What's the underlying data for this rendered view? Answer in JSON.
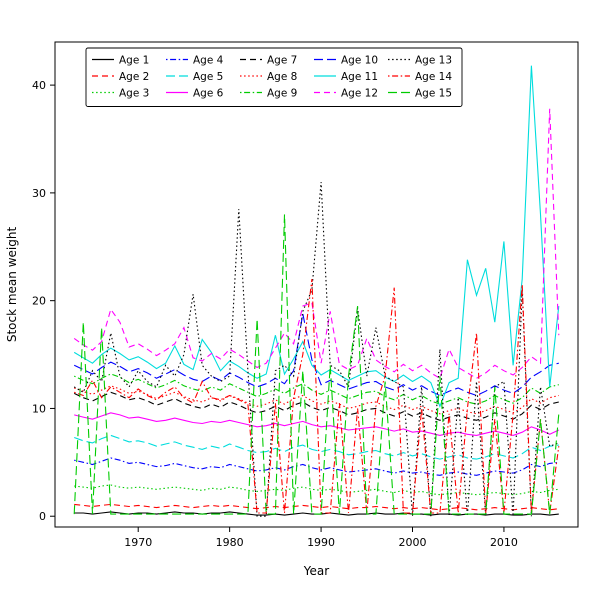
{
  "figure": {
    "xlabel": "Year",
    "ylabel": "Stock mean weight"
  },
  "chart_data": {
    "type": "line",
    "title": "",
    "xlabel": "Year",
    "ylabel": "Stock mean weight",
    "xlim": [
      1960.9,
      2018.1
    ],
    "ylim": [
      -1,
      44
    ],
    "x_ticks": [
      1970,
      1980,
      1990,
      2000,
      2010
    ],
    "y_ticks": [
      0,
      10,
      20,
      30,
      40
    ],
    "grid": false,
    "legend_position": "upper-left",
    "legend_ncol": 5,
    "legend_order": "column-major",
    "x": [
      1963,
      1964,
      1965,
      1966,
      1967,
      1968,
      1969,
      1970,
      1971,
      1972,
      1973,
      1974,
      1975,
      1976,
      1977,
      1978,
      1979,
      1980,
      1981,
      1982,
      1983,
      1984,
      1985,
      1986,
      1987,
      1988,
      1989,
      1990,
      1991,
      1992,
      1993,
      1994,
      1995,
      1996,
      1997,
      1998,
      1999,
      2000,
      2001,
      2002,
      2003,
      2004,
      2005,
      2006,
      2007,
      2008,
      2009,
      2010,
      2011,
      2012,
      2013,
      2014,
      2015,
      2016
    ],
    "series": [
      {
        "name": "Age 1",
        "color": "#000000",
        "linestyle": "solid",
        "values": [
          0.3,
          0.3,
          0.2,
          0.3,
          0.4,
          0.3,
          0.2,
          0.3,
          0.3,
          0.2,
          0.3,
          0.4,
          0.3,
          0.3,
          0.2,
          0.3,
          0.3,
          0.4,
          0.3,
          0.2,
          0.1,
          0.1,
          0.2,
          0.1,
          0.2,
          0.3,
          0.2,
          0.2,
          0.3,
          0.2,
          0.1,
          0.2,
          0.2,
          0.3,
          0.2,
          0.2,
          0.3,
          0.2,
          0.2,
          0.1,
          0.2,
          0.2,
          0.1,
          0.2,
          0.2,
          0.1,
          0.2,
          0.2,
          0.1,
          0.1,
          0.2,
          0.2,
          0.1,
          0.2
        ]
      },
      {
        "name": "Age 2",
        "color": "#ff0000",
        "linestyle": "dashed",
        "values": [
          1.1,
          1.0,
          0.9,
          1.0,
          1.1,
          1.0,
          0.9,
          1.0,
          0.9,
          0.8,
          0.9,
          1.0,
          0.9,
          0.8,
          0.9,
          1.0,
          0.9,
          1.0,
          0.9,
          0.8,
          0.7,
          0.8,
          0.9,
          0.8,
          0.9,
          1.0,
          0.9,
          0.8,
          0.9,
          0.8,
          0.7,
          0.8,
          0.8,
          0.9,
          0.8,
          0.7,
          0.8,
          0.7,
          0.8,
          0.7,
          0.6,
          0.7,
          0.8,
          0.7,
          0.6,
          0.7,
          0.8,
          0.7,
          0.6,
          0.7,
          0.8,
          0.7,
          0.6,
          0.7
        ]
      },
      {
        "name": "Age 3",
        "color": "#00cc00",
        "linestyle": "dotted",
        "values": [
          2.8,
          2.7,
          2.6,
          2.8,
          2.9,
          2.7,
          2.6,
          2.7,
          2.6,
          2.5,
          2.6,
          2.7,
          2.6,
          2.5,
          2.4,
          2.6,
          2.5,
          2.7,
          2.6,
          2.4,
          2.3,
          2.4,
          2.5,
          2.4,
          2.6,
          2.7,
          2.5,
          2.4,
          2.5,
          2.4,
          2.2,
          2.3,
          2.4,
          2.5,
          2.3,
          2.2,
          2.4,
          2.2,
          2.3,
          2.1,
          2.0,
          2.1,
          2.2,
          2.1,
          2.0,
          2.1,
          2.2,
          2.1,
          2.0,
          2.1,
          2.3,
          2.2,
          2.4,
          2.5
        ]
      },
      {
        "name": "Age 4",
        "color": "#0000ff",
        "linestyle": "dashdot",
        "values": [
          5.2,
          5.0,
          4.8,
          5.1,
          5.4,
          5.2,
          4.9,
          5.0,
          4.8,
          4.6,
          4.7,
          4.9,
          4.7,
          4.5,
          4.4,
          4.6,
          4.5,
          4.8,
          4.6,
          4.4,
          4.2,
          4.3,
          4.5,
          4.3,
          4.6,
          4.8,
          4.5,
          4.3,
          4.5,
          4.3,
          4.1,
          4.2,
          4.3,
          4.4,
          4.2,
          4.0,
          4.2,
          4.0,
          4.1,
          3.9,
          3.8,
          4.0,
          4.1,
          3.9,
          3.8,
          4.0,
          4.2,
          4.1,
          4.0,
          4.3,
          4.8,
          4.6,
          4.9,
          5.0
        ]
      },
      {
        "name": "Age 5",
        "color": "#00dddd",
        "linestyle": "longdash",
        "values": [
          7.3,
          7.0,
          6.8,
          7.2,
          7.5,
          7.2,
          6.9,
          7.0,
          6.8,
          6.5,
          6.7,
          6.9,
          6.6,
          6.4,
          6.2,
          6.5,
          6.3,
          6.7,
          6.4,
          6.1,
          5.9,
          6.0,
          6.3,
          6.0,
          6.4,
          6.6,
          6.2,
          6.0,
          6.2,
          6.0,
          5.7,
          5.8,
          6.0,
          6.1,
          5.8,
          5.6,
          5.9,
          5.6,
          5.8,
          5.5,
          5.3,
          5.5,
          5.7,
          5.4,
          5.3,
          5.5,
          5.8,
          5.6,
          5.4,
          5.8,
          6.4,
          6.1,
          6.5,
          6.6
        ]
      },
      {
        "name": "Age 6",
        "color": "#ff00ff",
        "linestyle": "solid",
        "values": [
          9.4,
          9.2,
          9.0,
          9.3,
          9.6,
          9.4,
          9.1,
          9.2,
          9.0,
          8.8,
          8.9,
          9.1,
          8.9,
          8.7,
          8.6,
          8.8,
          8.7,
          8.9,
          8.7,
          8.5,
          8.3,
          8.4,
          8.6,
          8.4,
          8.6,
          8.8,
          8.5,
          8.3,
          8.4,
          8.2,
          8.0,
          8.1,
          8.2,
          8.3,
          8.1,
          7.9,
          8.1,
          7.8,
          7.9,
          7.7,
          7.5,
          7.7,
          7.8,
          7.6,
          7.5,
          7.7,
          7.9,
          7.7,
          7.5,
          7.8,
          8.3,
          8.0,
          7.6,
          8.0
        ]
      },
      {
        "name": "Age 7",
        "color": "#000000",
        "linestyle": "dashed",
        "values": [
          11.4,
          11.0,
          10.7,
          11.1,
          11.5,
          11.2,
          10.8,
          11.0,
          10.7,
          10.3,
          10.6,
          10.9,
          10.5,
          10.2,
          10.0,
          10.4,
          10.1,
          10.6,
          10.3,
          9.9,
          9.6,
          9.8,
          10.2,
          9.8,
          10.3,
          10.6,
          10.1,
          9.8,
          10.1,
          9.8,
          9.4,
          9.6,
          9.9,
          10.0,
          9.6,
          9.3,
          9.7,
          9.3,
          9.6,
          9.2,
          8.9,
          9.2,
          9.4,
          9.1,
          8.9,
          9.2,
          9.6,
          9.3,
          9.0,
          9.5,
          10.3,
          9.9,
          10.4,
          10.6
        ]
      },
      {
        "name": "Age 8",
        "color": "#ff0000",
        "linestyle": "dotted",
        "values": [
          11.9,
          11.6,
          11.3,
          11.7,
          12.1,
          11.8,
          11.4,
          11.6,
          11.3,
          10.9,
          11.2,
          11.5,
          11.1,
          10.8,
          10.6,
          11.0,
          10.7,
          11.2,
          10.9,
          10.5,
          10.2,
          10.4,
          10.8,
          10.4,
          10.9,
          11.2,
          10.7,
          10.4,
          10.7,
          10.4,
          10.0,
          10.2,
          10.5,
          10.6,
          10.2,
          9.9,
          10.3,
          9.9,
          10.2,
          9.8,
          9.5,
          9.8,
          10.0,
          9.7,
          9.5,
          9.8,
          10.2,
          9.9,
          9.6,
          10.1,
          10.9,
          10.5,
          11.0,
          11.2
        ]
      },
      {
        "name": "Age 9",
        "color": "#00cc00",
        "linestyle": "dashdot",
        "values": [
          13.0,
          12.6,
          12.3,
          12.8,
          13.2,
          12.9,
          12.4,
          12.7,
          12.3,
          11.9,
          12.2,
          12.6,
          12.1,
          11.8,
          11.6,
          12.0,
          11.7,
          12.3,
          11.9,
          11.5,
          11.1,
          11.4,
          11.8,
          11.4,
          11.9,
          12.3,
          11.7,
          11.3,
          11.7,
          11.3,
          10.9,
          11.2,
          11.5,
          11.6,
          11.1,
          10.8,
          11.3,
          10.8,
          11.2,
          10.7,
          10.4,
          10.7,
          11.0,
          10.6,
          10.4,
          10.7,
          11.2,
          10.8,
          10.5,
          11.0,
          11.9,
          11.4,
          12.0,
          12.2
        ]
      },
      {
        "name": "Age 10",
        "color": "#0000ff",
        "linestyle": "longdash",
        "values": [
          14.0,
          13.6,
          13.2,
          13.8,
          14.3,
          13.9,
          13.4,
          13.7,
          13.3,
          12.8,
          13.2,
          13.6,
          13.1,
          12.7,
          12.5,
          13.0,
          12.6,
          13.3,
          12.9,
          12.4,
          12.0,
          12.3,
          12.8,
          12.3,
          13.5,
          18.8,
          14.5,
          12.2,
          12.6,
          12.2,
          11.8,
          12.1,
          12.4,
          12.5,
          12.0,
          11.7,
          12.2,
          11.7,
          12.1,
          11.6,
          11.2,
          11.6,
          11.9,
          11.5,
          11.2,
          11.6,
          12.1,
          11.7,
          11.4,
          12.0,
          12.9,
          13.4,
          14.0,
          14.2
        ]
      },
      {
        "name": "Age 11",
        "color": "#00dddd",
        "linestyle": "solid",
        "values": [
          15.2,
          14.7,
          14.2,
          15.0,
          15.6,
          15.1,
          14.5,
          14.8,
          14.3,
          13.7,
          14.2,
          15.8,
          14.1,
          13.6,
          16.4,
          15.2,
          13.5,
          14.4,
          13.9,
          13.3,
          12.8,
          13.2,
          16.8,
          13.2,
          14.6,
          16.2,
          14.0,
          13.1,
          13.6,
          13.1,
          12.6,
          13.0,
          13.4,
          13.5,
          12.9,
          12.5,
          13.1,
          12.5,
          13.0,
          12.4,
          10.2,
          12.4,
          12.8,
          23.8,
          20.5,
          23.0,
          18.0,
          25.5,
          14.0,
          22.0,
          41.8,
          28.0,
          12.0,
          19.5
        ]
      },
      {
        "name": "Age 12",
        "color": "#ff00ff",
        "linestyle": "dashed",
        "values": [
          16.5,
          15.9,
          15.4,
          16.2,
          19.2,
          18.0,
          15.7,
          16.0,
          15.5,
          14.9,
          15.4,
          16.0,
          17.5,
          14.7,
          14.4,
          15.1,
          14.6,
          15.5,
          15.0,
          14.4,
          13.8,
          14.2,
          15.6,
          17.0,
          16.0,
          19.5,
          19.8,
          14.2,
          19.0,
          14.1,
          13.6,
          14.0,
          16.5,
          14.5,
          13.9,
          13.4,
          14.1,
          13.5,
          14.0,
          13.3,
          12.8,
          15.5,
          13.8,
          13.3,
          12.8,
          13.3,
          14.0,
          13.5,
          13.1,
          13.8,
          14.8,
          14.2,
          37.8,
          16.8
        ]
      },
      {
        "name": "Age 13",
        "color": "#000000",
        "linestyle": "dotted",
        "values": [
          12.0,
          11.5,
          13.5,
          12.5,
          17.0,
          13.0,
          12.0,
          13.5,
          12.5,
          12.0,
          14.0,
          13.0,
          15.0,
          20.6,
          14.0,
          13.0,
          12.5,
          13.0,
          28.5,
          13.5,
          0.0,
          0.0,
          13.5,
          14.0,
          13.0,
          19.0,
          21.0,
          31.0,
          14.0,
          13.5,
          12.0,
          19.3,
          13.0,
          17.5,
          13.0,
          12.5,
          12.0,
          0.0,
          12.0,
          0.0,
          15.5,
          0.0,
          11.0,
          0.0,
          12.5,
          0.0,
          12.0,
          12.5,
          0.0,
          21.0,
          0.0,
          12.0,
          6.5,
          6.8
        ]
      },
      {
        "name": "Age 14",
        "color": "#ff0000",
        "linestyle": "dashdot",
        "values": [
          11.5,
          11.2,
          12.6,
          11.0,
          12.0,
          11.5,
          11.0,
          11.8,
          11.2,
          10.8,
          11.5,
          12.0,
          11.0,
          10.5,
          12.5,
          11.0,
          10.8,
          11.2,
          10.8,
          10.4,
          0.3,
          0.3,
          10.5,
          0.3,
          11.0,
          15.0,
          22.0,
          0.3,
          0.3,
          10.5,
          0.3,
          10.0,
          0.3,
          10.2,
          13.0,
          21.2,
          0.3,
          0.3,
          10.0,
          0.3,
          0.3,
          9.5,
          0.3,
          10.0,
          17.0,
          0.3,
          9.0,
          0.3,
          9.5,
          21.5,
          0.3,
          9.0,
          0.3,
          6.5
        ]
      },
      {
        "name": "Age 15",
        "color": "#00cc00",
        "linestyle": "longdash",
        "values": [
          0.2,
          18.0,
          0.2,
          17.5,
          0.2,
          0.2,
          0.2,
          0.2,
          0.2,
          0.2,
          0.2,
          0.2,
          0.2,
          0.2,
          0.2,
          0.2,
          0.2,
          0.2,
          0.2,
          0.2,
          18.3,
          0.2,
          0.2,
          28.0,
          0.2,
          13.5,
          0.2,
          0.2,
          14.0,
          0.2,
          13.0,
          19.5,
          0.2,
          0.2,
          12.5,
          0.2,
          0.2,
          0.2,
          0.2,
          0.2,
          13.0,
          0.2,
          0.2,
          0.2,
          0.2,
          0.2,
          12.0,
          0.2,
          0.2,
          0.2,
          0.2,
          9.0,
          0.2,
          9.5
        ]
      }
    ]
  }
}
